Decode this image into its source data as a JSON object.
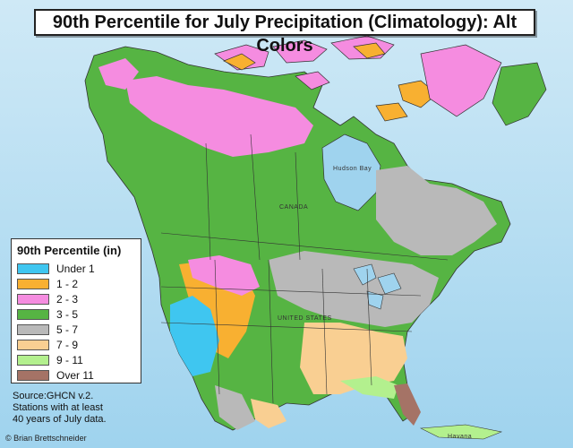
{
  "title": "90th Percentile for July Precipitation (Climatology): Alt Colors",
  "legend": {
    "title": "90th Percentile (in)",
    "items": [
      {
        "label": "Under 1",
        "color": "#3fc6f0"
      },
      {
        "label": "1 - 2",
        "color": "#f8b031"
      },
      {
        "label": "2 - 3",
        "color": "#f58ce0"
      },
      {
        "label": "3 - 5",
        "color": "#56b443"
      },
      {
        "label": "5 - 7",
        "color": "#b9b9b9"
      },
      {
        "label": "7 - 9",
        "color": "#f9cf92"
      },
      {
        "label": "9 - 11",
        "color": "#b3f08e"
      },
      {
        "label": "Over 11",
        "color": "#a57366"
      }
    ]
  },
  "source": "Source:GHCN v.2.\nStations with at least\n40 years of July data.",
  "credit": "© Brian Brettschneider",
  "colors": {
    "ocean": "#9fd3ee",
    "ocean_light": "#cfe9f6",
    "boundary": "#333333"
  },
  "place_labels": {
    "hudson_bay": "Hudson Bay",
    "canada": "CANADA",
    "united_states": "UNITED STATES",
    "havana": "Havana"
  }
}
